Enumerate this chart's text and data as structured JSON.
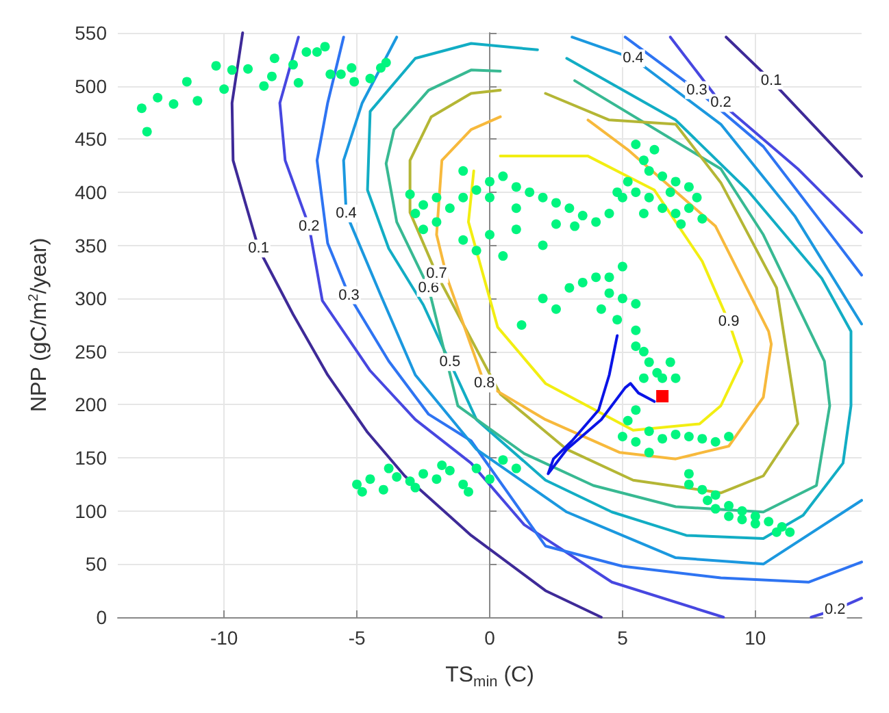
{
  "chart_data": {
    "type": "scatter",
    "xlabel": "TS$_{min}$ (C)",
    "ylabel": "NPP (gC/m$^{2}$/year)",
    "xlim": [
      -14,
      14
    ],
    "ylim": [
      0,
      550
    ],
    "xticks": [
      -10,
      -5,
      0,
      5,
      10
    ],
    "yticks": [
      0,
      50,
      100,
      150,
      200,
      250,
      300,
      350,
      400,
      450,
      500,
      550
    ],
    "grid": true,
    "series": [
      {
        "type": "line",
        "name": "0.1",
        "color": "#3e2a98",
        "line_style": "solid",
        "x": [
          -9.3,
          -9.7,
          -9.66,
          -9.2,
          -8.7,
          -7.4,
          -6.1,
          -4.6,
          -3.2,
          -0.7,
          2.1,
          4.2,
          null,
          8.9,
          10.6,
          14
        ],
        "values": [
          550,
          484,
          430,
          390,
          347,
          285,
          228,
          174,
          133,
          77,
          25,
          0,
          null,
          546,
          505,
          415
        ]
      },
      {
        "type": "line",
        "name": "0.2",
        "color": "#4747e0",
        "line_style": "solid",
        "x": [
          -7.2,
          -7.9,
          -7.7,
          -6.8,
          -6.3,
          -4.5,
          -2.8,
          -0.7,
          1.3,
          4.6,
          8.8,
          null,
          12.1,
          13,
          14,
          null,
          6.8,
          8.7,
          11.6,
          14
        ],
        "values": [
          546,
          484,
          430,
          368,
          298,
          232,
          186,
          145,
          87,
          33,
          0,
          null,
          0,
          7,
          18,
          null,
          546,
          484,
          422,
          362
        ]
      },
      {
        "type": "line",
        "name": "0.3",
        "color": "#2e74f2",
        "line_style": "solid",
        "x": [
          -5.5,
          -6.1,
          -6.5,
          -6.1,
          -5.3,
          -3.8,
          -2.3,
          -0.7,
          2.1,
          5.0,
          8.7,
          12.0,
          14,
          null,
          5.1,
          7.8,
          10.3,
          12.6,
          14
        ],
        "values": [
          546,
          484,
          430,
          352,
          303,
          241,
          191,
          166,
          67,
          48,
          37,
          33,
          52,
          null,
          546,
          496,
          443,
          368,
          322
        ]
      },
      {
        "type": "line",
        "name": "0.4",
        "color": "#1b98df",
        "line_style": "solid",
        "x": [
          -3.5,
          -4.8,
          -5.5,
          -5.4,
          -4.1,
          -2.8,
          -0.5,
          2.9,
          7.0,
          10.3,
          14,
          null,
          3.1,
          5.4,
          8.7,
          11.5,
          14
        ],
        "values": [
          546,
          484,
          430,
          380,
          303,
          228,
          158,
          99,
          56,
          50,
          110,
          null,
          546,
          526,
          464,
          377,
          276
        ]
      },
      {
        "type": "line",
        "name": "0.5",
        "color": "#12adc4",
        "line_style": "solid",
        "x": [
          1.8,
          -0.7,
          -2.8,
          -4.5,
          -4.6,
          -3.8,
          -2.5,
          -1.5,
          -0.5,
          2.1,
          4.6,
          7.4,
          10.3,
          11.8,
          13.3,
          13.6,
          13.6,
          13.6,
          12.5,
          9.7,
          7.0,
          2.9
        ],
        "values": [
          534,
          540,
          526,
          476,
          402,
          347,
          294,
          240,
          186,
          129,
          99,
          77,
          74,
          96,
          145,
          199,
          241,
          269,
          319,
          402,
          468,
          526
        ]
      },
      {
        "type": "line",
        "name": "0.6",
        "color": "#38b992",
        "line_style": "solid",
        "x": [
          0.4,
          -0.7,
          -2.3,
          -3.6,
          -3.9,
          -3.5,
          -2.3,
          -1.2,
          1.3,
          3.9,
          7.0,
          10.3,
          12.3,
          12.8,
          12.6,
          10.3,
          8.7,
          3.2
        ],
        "values": [
          514,
          515,
          496,
          459,
          427,
          372,
          310,
          199,
          154,
          124,
          104,
          99,
          124,
          199,
          241,
          360,
          422,
          505
        ]
      },
      {
        "type": "line",
        "name": "0.7",
        "color": "#b4b635",
        "line_style": "solid",
        "x": [
          0.4,
          -0.7,
          -2.2,
          -3.0,
          -3.0,
          -2.0,
          0.4,
          2.9,
          5.4,
          8.7,
          10.3,
          11.6,
          10.8,
          8.7,
          7.0,
          4.5,
          2.1
        ],
        "values": [
          496,
          493,
          471,
          430,
          381,
          323,
          210,
          158,
          129,
          117,
          133,
          182,
          310,
          409,
          464,
          468,
          493
        ]
      },
      {
        "type": "line",
        "name": "0.8",
        "color": "#f7b93c",
        "line_style": "solid",
        "x": [
          0.4,
          -0.7,
          -1.8,
          -2.0,
          -1.6,
          -0.2,
          2.1,
          4.9,
          7.0,
          9.0,
          10.3,
          10.6,
          10.5,
          8.5,
          5.2,
          3.7
        ],
        "values": [
          471,
          459,
          430,
          360,
          319,
          220,
          186,
          155,
          149,
          161,
          207,
          257,
          269,
          368,
          440,
          468
        ]
      },
      {
        "type": "line",
        "name": "0.9",
        "color": "#f2ee12",
        "line_style": "solid",
        "x": [
          0.4,
          3.7,
          6.2,
          8.0,
          9.0,
          9.5,
          8.7,
          7.9,
          5.4,
          2.1,
          0.3,
          -0.8,
          -0.6
        ],
        "values": [
          434,
          434,
          402,
          335,
          278,
          241,
          199,
          182,
          176,
          220,
          273,
          372,
          420
        ]
      },
      {
        "color": "#00f57f",
        "marker": "circle",
        "x": [
          -13.1,
          -12.9,
          -12.5,
          -11.9,
          -11.4,
          -11.0,
          -10.3,
          -10.0,
          -9.7,
          -9.1,
          -8.5,
          -8.2,
          -8.1,
          -7.4,
          -7.2,
          -6.9,
          -6.5,
          -6.2,
          -6.0,
          -5.6,
          -5.2,
          -5.1,
          -4.5,
          -4.1,
          -3.9,
          -3.0,
          -2.8,
          -2.5,
          -2.0,
          -1.5,
          -1.0,
          -0.5,
          0,
          0.5,
          1,
          1.5,
          2,
          2.5,
          3,
          3.5,
          4,
          4.5,
          -1,
          -0.5,
          0,
          0.5,
          1,
          2,
          -2,
          -1,
          0,
          1,
          -2.5,
          2.5,
          3.2,
          5.5,
          5.8,
          6,
          6.5,
          7,
          7.5,
          5.2,
          5,
          5.5,
          6,
          6.5,
          7,
          7.5,
          8,
          6.2,
          6.8,
          7.2,
          7.8,
          5.8,
          4.8,
          2,
          2.5,
          3,
          3.5,
          4,
          4.5,
          5,
          5.5,
          4.8,
          4.2,
          5,
          4.5,
          5.5,
          5.8,
          6,
          6.3,
          6.5,
          7,
          6.8,
          5.8,
          1.2,
          5.5,
          5,
          5.5,
          6,
          6.5,
          7,
          7.5,
          8,
          8.5,
          9,
          6,
          5.5,
          5.2,
          7.5,
          8,
          8.5,
          9,
          9.5,
          10,
          10.5,
          11,
          11.3,
          10,
          9,
          8.5,
          7.5,
          8.2,
          9.5,
          10.8,
          -5,
          -4.5,
          -4,
          -3.5,
          -3,
          -2.5,
          -2,
          -1.5,
          -1,
          -0.5,
          0,
          0.5,
          1,
          -4.8,
          -3.8,
          -2.8,
          -1.8,
          -0.8
        ],
        "values": [
          479,
          457,
          489,
          483,
          504,
          486,
          519,
          497,
          515,
          516,
          500,
          509,
          526,
          520,
          503,
          532,
          532,
          537,
          511,
          511,
          517,
          504,
          507,
          517,
          522,
          398,
          380,
          365,
          372,
          385,
          395,
          402,
          410,
          415,
          405,
          400,
          395,
          390,
          385,
          378,
          372,
          380,
          355,
          345,
          360,
          340,
          365,
          350,
          395,
          420,
          395,
          385,
          388,
          370,
          368,
          445,
          430,
          420,
          415,
          410,
          405,
          410,
          395,
          400,
          395,
          385,
          380,
          385,
          375,
          440,
          400,
          370,
          395,
          380,
          400,
          300,
          290,
          310,
          315,
          320,
          305,
          300,
          295,
          280,
          290,
          330,
          320,
          270,
          250,
          240,
          230,
          225,
          225,
          240,
          225,
          275,
          255,
          170,
          165,
          175,
          168,
          172,
          170,
          168,
          165,
          170,
          155,
          195,
          185,
          135,
          120,
          115,
          105,
          100,
          95,
          90,
          85,
          80,
          88,
          95,
          102,
          125,
          110,
          92,
          80,
          125,
          130,
          120,
          132,
          128,
          135,
          130,
          138,
          125,
          140,
          130,
          148,
          140,
          118,
          140,
          122,
          143,
          118
        ]
      },
      {
        "type": "line",
        "color": "#0a14e6",
        "line_style": "solid",
        "x": [
          4.8,
          4.5,
          4.1,
          3.1,
          2.4,
          2.2,
          2.9,
          4.2,
          5.1,
          5.3,
          5.6,
          6.2
        ],
        "values": [
          265,
          228,
          195,
          166,
          149,
          135,
          158,
          186,
          216,
          220,
          211,
          203
        ]
      },
      {
        "color": "#ff0000",
        "marker": "square",
        "x": [
          6.5
        ],
        "values": [
          208
        ]
      }
    ]
  }
}
